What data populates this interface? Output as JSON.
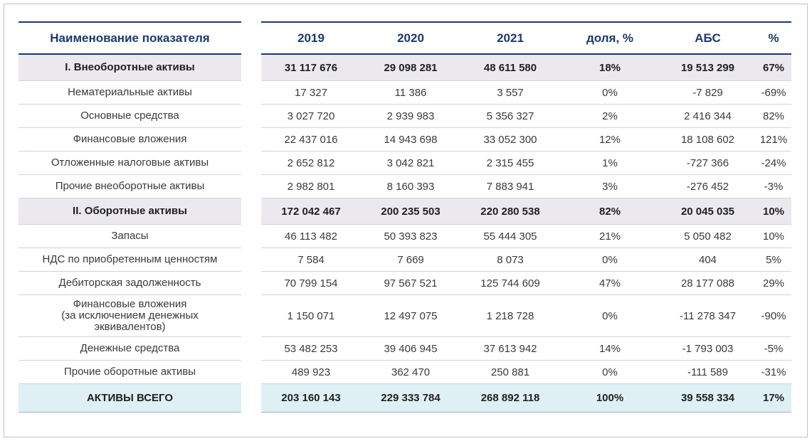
{
  "header": {
    "name": "Наименование показателя",
    "y2019": "2019",
    "y2020": "2020",
    "y2021": "2021",
    "share": "доля, %",
    "abs": "АБС",
    "pct": "%"
  },
  "rows": [
    {
      "name": "I. Внеоборотные активы",
      "y2019": "31 117 676",
      "y2020": "29 098 281",
      "y2021": "48 611 580",
      "share": "18%",
      "abs": "19 513 299",
      "pct": "67%"
    },
    {
      "name": "Нематериальные активы",
      "y2019": "17 327",
      "y2020": "11 386",
      "y2021": "3 557",
      "share": "0%",
      "abs": "-7 829",
      "pct": "-69%"
    },
    {
      "name": "Основные средства",
      "y2019": "3 027 720",
      "y2020": "2 939 983",
      "y2021": "5 356 327",
      "share": "2%",
      "abs": "2 416 344",
      "pct": "82%"
    },
    {
      "name": "Финансовые вложения",
      "y2019": "22 437 016",
      "y2020": "14 943 698",
      "y2021": "33 052 300",
      "share": "12%",
      "abs": "18 108 602",
      "pct": "121%"
    },
    {
      "name": "Отложенные налоговые активы",
      "y2019": "2 652 812",
      "y2020": "3 042 821",
      "y2021": "2 315 455",
      "share": "1%",
      "abs": "-727 366",
      "pct": "-24%"
    },
    {
      "name": "Прочие внеоборотные активы",
      "y2019": "2 982 801",
      "y2020": "8 160 393",
      "y2021": "7 883 941",
      "share": "3%",
      "abs": "-276 452",
      "pct": "-3%"
    },
    {
      "name": "II. Оборотные активы",
      "y2019": "172 042 467",
      "y2020": "200 235 503",
      "y2021": "220 280 538",
      "share": "82%",
      "abs": "20 045 035",
      "pct": "10%"
    },
    {
      "name": "Запасы",
      "y2019": "46 113 482",
      "y2020": "50 393 823",
      "y2021": "55 444 305",
      "share": "21%",
      "abs": "5 050 482",
      "pct": "10%"
    },
    {
      "name": "НДС по приобретенным ценностям",
      "y2019": "7 584",
      "y2020": "7 669",
      "y2021": "8 073",
      "share": "0%",
      "abs": "404",
      "pct": "5%"
    },
    {
      "name": "Дебиторская задолженность",
      "y2019": "70 799 154",
      "y2020": "97 567 521",
      "y2021": "125 744 609",
      "share": "47%",
      "abs": "28 177 088",
      "pct": "29%"
    },
    {
      "name": "Финансовые вложения\n(за исключением денежных\nэквивалентов)",
      "y2019": "1 150 071",
      "y2020": "12 497 075",
      "y2021": "1 218 728",
      "share": "0%",
      "abs": "-11 278 347",
      "pct": "-90%"
    },
    {
      "name": "Денежные средства",
      "y2019": "53 482 253",
      "y2020": "39 406 945",
      "y2021": "37 613 942",
      "share": "14%",
      "abs": "-1 793 003",
      "pct": "-5%"
    },
    {
      "name": "Прочие оборотные активы",
      "y2019": "489 923",
      "y2020": "362 470",
      "y2021": "250 881",
      "share": "0%",
      "abs": "-111 589",
      "pct": "-31%"
    },
    {
      "name": "АКТИВЫ ВСЕГО",
      "y2019": "203 160 143",
      "y2020": "229 333 784",
      "y2021": "268 892 118",
      "share": "100%",
      "abs": "39 558 334",
      "pct": "17%"
    }
  ]
}
